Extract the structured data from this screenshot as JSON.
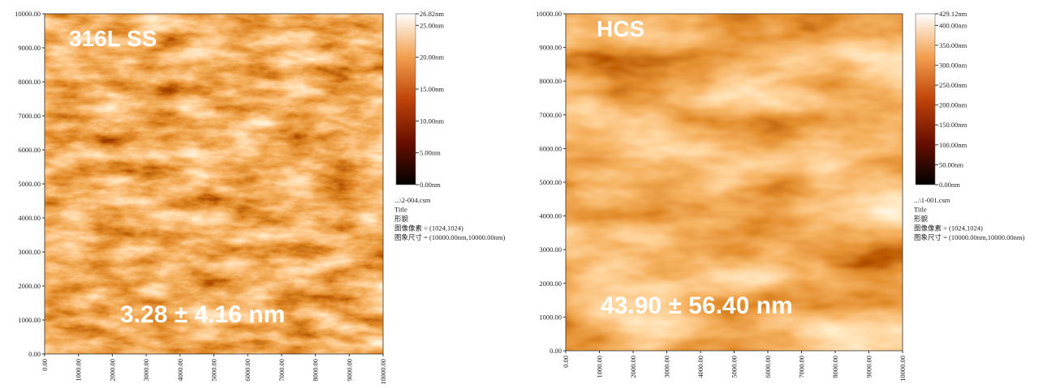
{
  "panels": [
    {
      "label": "316L SS",
      "annotation": "3.28 ± 4.16 nm",
      "axis_ticks": [
        {
          "value": 0,
          "label": "0.00"
        },
        {
          "value": 1000,
          "label": "1000.00"
        },
        {
          "value": 2000,
          "label": "2000.00"
        },
        {
          "value": 3000,
          "label": "3000.00"
        },
        {
          "value": 4000,
          "label": "4000.00"
        },
        {
          "value": 5000,
          "label": "5000.00"
        },
        {
          "value": 6000,
          "label": "6000.00"
        },
        {
          "value": 7000,
          "label": "7000.00"
        },
        {
          "value": 8000,
          "label": "8000.00"
        },
        {
          "value": 9000,
          "label": "9000.00"
        },
        {
          "value": 10000,
          "label": "10000.00"
        }
      ],
      "colorbar_ticks": [
        {
          "value": 0,
          "label": "0.00nm"
        },
        {
          "value": 5,
          "label": "5.00nm"
        },
        {
          "value": 10,
          "label": "10.00nm"
        },
        {
          "value": 15,
          "label": "15.00nm"
        },
        {
          "value": 20,
          "label": "20.00nm"
        },
        {
          "value": 25,
          "label": "25.00nm"
        },
        {
          "value": 26.82,
          "label": "26.82nm"
        }
      ],
      "info": [
        "...\\2-004.csm",
        "Title",
        "形貌",
        "图像像素 = (1024,1024)",
        "图象尺寸 = (10000.00nm,10000.00nm)"
      ]
    },
    {
      "label": "HCS",
      "annotation": "43.90 ± 56.40 nm",
      "axis_ticks": [
        {
          "value": 0,
          "label": "0.00"
        },
        {
          "value": 1000,
          "label": "1000.00"
        },
        {
          "value": 2000,
          "label": "2000.00"
        },
        {
          "value": 3000,
          "label": "3000.00"
        },
        {
          "value": 4000,
          "label": "4000.00"
        },
        {
          "value": 5000,
          "label": "5000.00"
        },
        {
          "value": 6000,
          "label": "6000.00"
        },
        {
          "value": 7000,
          "label": "7000.00"
        },
        {
          "value": 8000,
          "label": "8000.00"
        },
        {
          "value": 9000,
          "label": "9000.00"
        },
        {
          "value": 10000,
          "label": "10000.00"
        }
      ],
      "colorbar_ticks": [
        {
          "value": 0,
          "label": "0.00nm"
        },
        {
          "value": 50,
          "label": "50.00nm"
        },
        {
          "value": 100,
          "label": "100.00nm"
        },
        {
          "value": 150,
          "label": "150.00nm"
        },
        {
          "value": 200,
          "label": "200.00nm"
        },
        {
          "value": 250,
          "label": "250.00nm"
        },
        {
          "value": 300,
          "label": "300.00nm"
        },
        {
          "value": 350,
          "label": "350.00nm"
        },
        {
          "value": 400,
          "label": "400.00nm"
        },
        {
          "value": 429.12,
          "label": "429.12nm"
        }
      ],
      "info": [
        "...\\1-001.csm",
        "Title",
        "形貌",
        "图像像素 = (1024,1024)",
        "图象尺寸 = (10000.00nm,10000.00nm)"
      ]
    }
  ]
}
